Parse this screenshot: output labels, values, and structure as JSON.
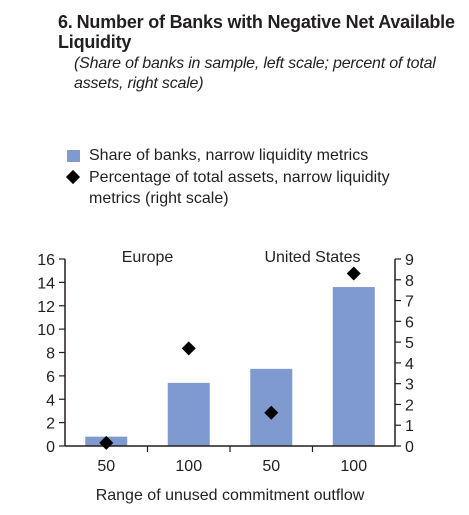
{
  "title_number": "6.",
  "title": "Number of Banks with Negative Net Available Liquidity",
  "subtitle": "(Share of banks in sample, left scale; percent of total assets, right scale)",
  "legend": {
    "bars": "Share of banks, narrow liquidity metrics",
    "diamonds": "Percentage of total assets, narrow liquidity metrics (right scale)"
  },
  "colors": {
    "bar": "#7e9ace",
    "diamond": "#000000",
    "axis": "#231f20"
  },
  "chart_data": {
    "type": "bar",
    "title": "Number of Banks with Negative Net Available Liquidity",
    "xlabel": "Range of unused commitment outflow",
    "categories": [
      "50",
      "100",
      "50",
      "100"
    ],
    "groups": [
      {
        "label": "Europe",
        "categories": [
          0,
          1
        ]
      },
      {
        "label": "United States",
        "categories": [
          2,
          3
        ]
      }
    ],
    "series": [
      {
        "name": "Share of banks, narrow liquidity metrics",
        "type": "bar",
        "axis": "left",
        "values": [
          0.8,
          5.4,
          6.6,
          13.6
        ]
      },
      {
        "name": "Percentage of total assets, narrow liquidity metrics (right scale)",
        "type": "scatter",
        "marker": "diamond",
        "axis": "right",
        "values": [
          0.15,
          4.7,
          1.6,
          8.3
        ]
      }
    ],
    "ylim_left": [
      0,
      16
    ],
    "yticks_left": [
      0,
      2,
      4,
      6,
      8,
      10,
      12,
      14,
      16
    ],
    "ylim_right": [
      0,
      9
    ],
    "yticks_right": [
      0,
      1,
      2,
      3,
      4,
      5,
      6,
      7,
      8,
      9
    ],
    "grid": false,
    "legend_position": "top"
  }
}
